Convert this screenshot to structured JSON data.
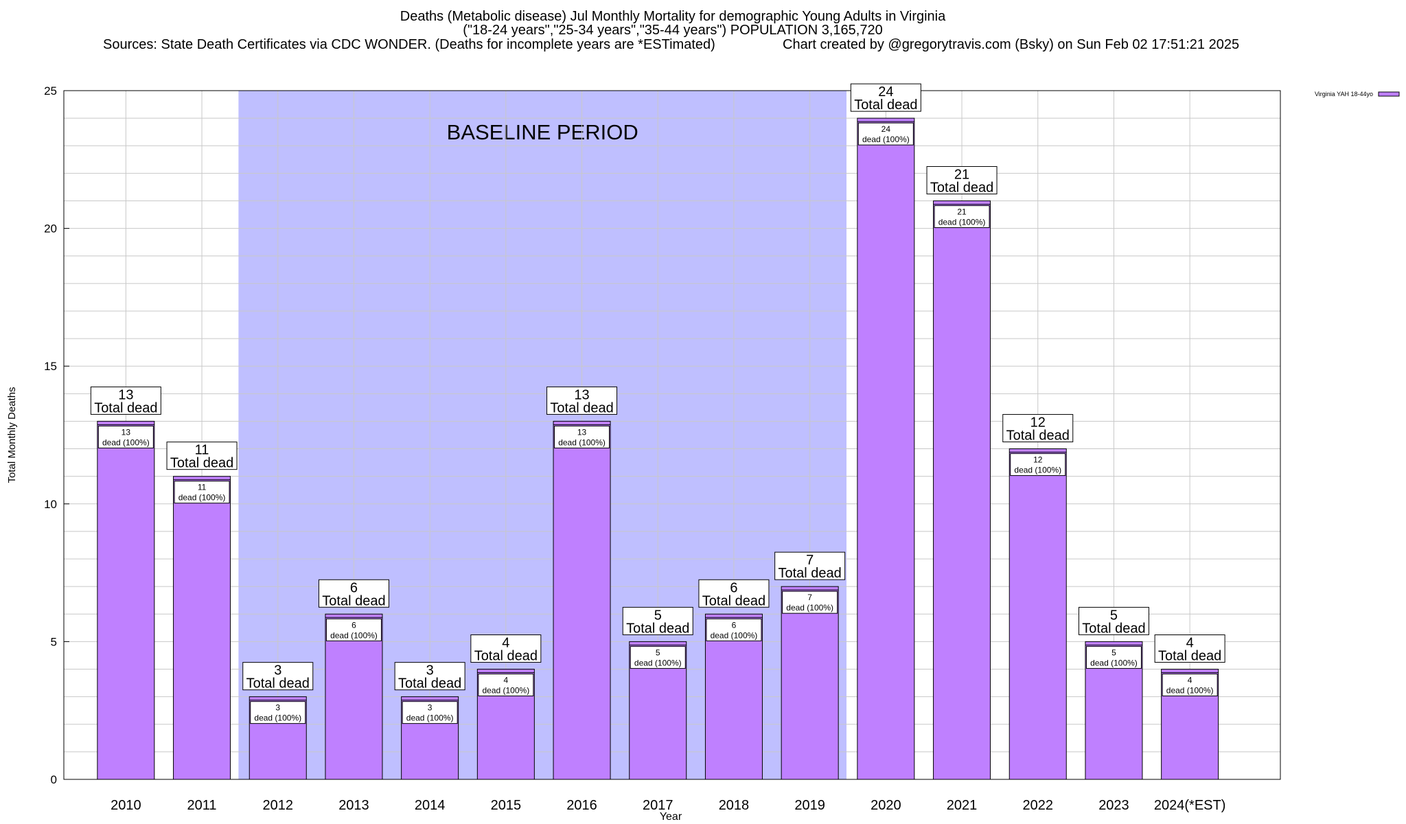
{
  "header": {
    "title_line1": "Deaths (Metabolic disease) Jul Monthly Mortality for demographic Young Adults in Virginia",
    "title_line2": "(\"18-24 years\",\"25-34 years\",\"35-44 years\") POPULATION 3,165,720",
    "sources": "Sources: State Death Certificates via CDC WONDER. (Deaths for incomplete years are *ESTimated)",
    "credit": "Chart created by @gregorytravis.com (Bsky) on Sun Feb 02 17:51:21 2025"
  },
  "chart_data": {
    "type": "bar",
    "xlabel": "Year",
    "ylabel": "Total Monthly Deaths",
    "ylim": [
      0,
      25
    ],
    "yticks": [
      0,
      5,
      10,
      15,
      20,
      25
    ],
    "grid": true,
    "categories": [
      "2010",
      "2011",
      "2012",
      "2013",
      "2014",
      "2015",
      "2016",
      "2017",
      "2018",
      "2019",
      "2020",
      "2021",
      "2022",
      "2023",
      "2024(*EST)"
    ],
    "series": [
      {
        "name": "Virginia YAH 18-44yo",
        "values": [
          13,
          11,
          3,
          6,
          3,
          4,
          13,
          5,
          6,
          7,
          24,
          21,
          12,
          5,
          4
        ]
      }
    ],
    "top_label_suffix": "Total dead",
    "inner_label_suffix": "dead (100%)",
    "baseline_period": {
      "label": "BASELINE PERIOD",
      "from": "2012",
      "to": "2019"
    },
    "legend_position": "top-right",
    "colors": {
      "bar": "#bf80ff",
      "baseline_band": "#bfbfff",
      "grid": "#c8c8c8"
    }
  }
}
